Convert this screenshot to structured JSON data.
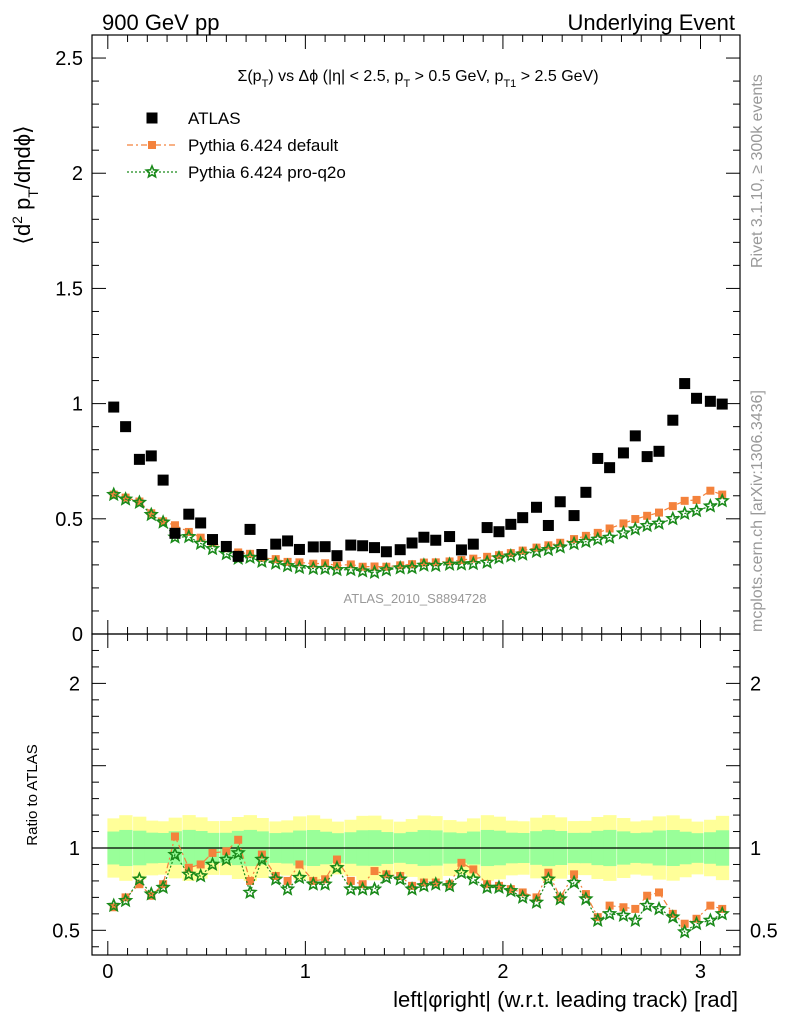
{
  "header": {
    "left": "900 GeV pp",
    "right": "Underlying Event"
  },
  "side_labels": {
    "rivet": "Rivet 3.1.10, ≥ 300k events",
    "mcplots": "mcplots.cern.ch [arXiv:1306.3436]"
  },
  "watermark": "ATLAS_2010_S8894728",
  "colors": {
    "atlas": "#000000",
    "default": "#f4823c",
    "proq2o": "#1a8a1a",
    "band_outer": "#ffff99",
    "band_inner": "#99ff99"
  },
  "chart_data": [
    {
      "type": "scatter",
      "title": "Σ(p_T) vs Δφ (|η| < 2.5, p_T > 0.5 GeV, p_T1 > 2.5 GeV)",
      "ylabel": "⟨d² p_T/dηdφ⟩",
      "xlim": [
        -0.08,
        3.2
      ],
      "ylim": [
        0,
        2.6
      ],
      "yticks": [
        "0",
        "0.5",
        "1",
        "1.5",
        "2",
        "2.5"
      ],
      "legend_placement": "top-left",
      "x": [
        0.03,
        0.09,
        0.16,
        0.22,
        0.28,
        0.34,
        0.41,
        0.47,
        0.53,
        0.6,
        0.66,
        0.72,
        0.78,
        0.85,
        0.91,
        0.97,
        1.04,
        1.1,
        1.16,
        1.23,
        1.29,
        1.35,
        1.41,
        1.48,
        1.54,
        1.6,
        1.66,
        1.73,
        1.79,
        1.85,
        1.92,
        1.98,
        2.04,
        2.1,
        2.17,
        2.23,
        2.29,
        2.36,
        2.42,
        2.48,
        2.54,
        2.61,
        2.67,
        2.73,
        2.79,
        2.86,
        2.92,
        2.98,
        3.05,
        3.11
      ],
      "series": [
        {
          "name": "ATLAS",
          "values": [
            0.985,
            0.9,
            0.758,
            0.773,
            0.668,
            0.437,
            0.52,
            0.482,
            0.41,
            0.38,
            0.337,
            0.454,
            0.345,
            0.39,
            0.404,
            0.367,
            0.378,
            0.379,
            0.34,
            0.386,
            0.383,
            0.375,
            0.357,
            0.366,
            0.395,
            0.42,
            0.407,
            0.423,
            0.365,
            0.39,
            0.462,
            0.444,
            0.476,
            0.505,
            0.55,
            0.471,
            0.574,
            0.514,
            0.615,
            0.762,
            0.722,
            0.786,
            0.86,
            0.77,
            0.793,
            0.928,
            1.087,
            1.023,
            1.01,
            0.998
          ]
        },
        {
          "name": "Pythia 6.424 default",
          "values": [
            0.605,
            0.592,
            0.575,
            0.524,
            0.489,
            0.472,
            0.443,
            0.418,
            0.396,
            0.372,
            0.354,
            0.348,
            0.331,
            0.325,
            0.313,
            0.311,
            0.305,
            0.307,
            0.297,
            0.302,
            0.292,
            0.293,
            0.292,
            0.298,
            0.303,
            0.31,
            0.311,
            0.315,
            0.321,
            0.327,
            0.335,
            0.342,
            0.351,
            0.362,
            0.375,
            0.385,
            0.396,
            0.412,
            0.426,
            0.439,
            0.458,
            0.48,
            0.499,
            0.513,
            0.527,
            0.555,
            0.578,
            0.582,
            0.622,
            0.605
          ]
        },
        {
          "name": "Pythia 6.424 pro-q2o",
          "values": [
            0.605,
            0.585,
            0.571,
            0.518,
            0.485,
            0.42,
            0.422,
            0.393,
            0.37,
            0.348,
            0.328,
            0.332,
            0.315,
            0.307,
            0.296,
            0.288,
            0.284,
            0.284,
            0.279,
            0.279,
            0.273,
            0.267,
            0.278,
            0.286,
            0.287,
            0.298,
            0.297,
            0.302,
            0.303,
            0.305,
            0.311,
            0.33,
            0.338,
            0.346,
            0.358,
            0.366,
            0.377,
            0.392,
            0.401,
            0.411,
            0.419,
            0.438,
            0.455,
            0.47,
            0.48,
            0.5,
            0.523,
            0.535,
            0.555,
            0.578
          ]
        }
      ]
    },
    {
      "type": "line",
      "xlabel": "left|φright| (w.r.t. leading track) [rad]",
      "ylabel": "Ratio to ATLAS",
      "xlim": [
        -0.08,
        3.2
      ],
      "ylim": [
        0.35,
        2.3
      ],
      "xticks": [
        "0",
        "1",
        "2",
        "3"
      ],
      "yticks": [
        "0.5",
        "1",
        "2"
      ],
      "reference_line": 1,
      "band_inner": [
        0.9,
        1.1
      ],
      "band_outer": [
        0.82,
        1.18
      ],
      "x": [
        0.03,
        0.09,
        0.16,
        0.22,
        0.28,
        0.34,
        0.41,
        0.47,
        0.53,
        0.6,
        0.66,
        0.72,
        0.78,
        0.85,
        0.91,
        0.97,
        1.04,
        1.1,
        1.16,
        1.23,
        1.29,
        1.35,
        1.41,
        1.48,
        1.54,
        1.6,
        1.66,
        1.73,
        1.79,
        1.85,
        1.92,
        1.98,
        2.04,
        2.1,
        2.17,
        2.23,
        2.29,
        2.36,
        2.42,
        2.48,
        2.54,
        2.61,
        2.67,
        2.73,
        2.79,
        2.86,
        2.92,
        2.98,
        3.05,
        3.11
      ],
      "series": [
        {
          "name": "Pythia 6.424 default",
          "values": [
            0.64,
            0.7,
            0.78,
            0.71,
            0.78,
            1.07,
            0.88,
            0.9,
            0.97,
            0.98,
            1.05,
            0.8,
            0.96,
            0.83,
            0.8,
            0.9,
            0.8,
            0.81,
            0.93,
            0.8,
            0.78,
            0.86,
            0.84,
            0.83,
            0.77,
            0.79,
            0.79,
            0.78,
            0.91,
            0.87,
            0.78,
            0.77,
            0.75,
            0.73,
            0.7,
            0.85,
            0.7,
            0.84,
            0.72,
            0.58,
            0.65,
            0.64,
            0.63,
            0.71,
            0.73,
            0.6,
            0.54,
            0.57,
            0.65,
            0.63
          ]
        },
        {
          "name": "Pythia 6.424 pro-q2o",
          "values": [
            0.65,
            0.68,
            0.81,
            0.72,
            0.76,
            0.96,
            0.84,
            0.83,
            0.9,
            0.93,
            0.97,
            0.73,
            0.93,
            0.81,
            0.75,
            0.82,
            0.78,
            0.78,
            0.88,
            0.75,
            0.75,
            0.75,
            0.82,
            0.81,
            0.75,
            0.77,
            0.78,
            0.77,
            0.85,
            0.81,
            0.76,
            0.76,
            0.74,
            0.7,
            0.67,
            0.81,
            0.69,
            0.79,
            0.69,
            0.56,
            0.6,
            0.59,
            0.56,
            0.65,
            0.63,
            0.58,
            0.49,
            0.54,
            0.56,
            0.6
          ]
        }
      ]
    }
  ]
}
